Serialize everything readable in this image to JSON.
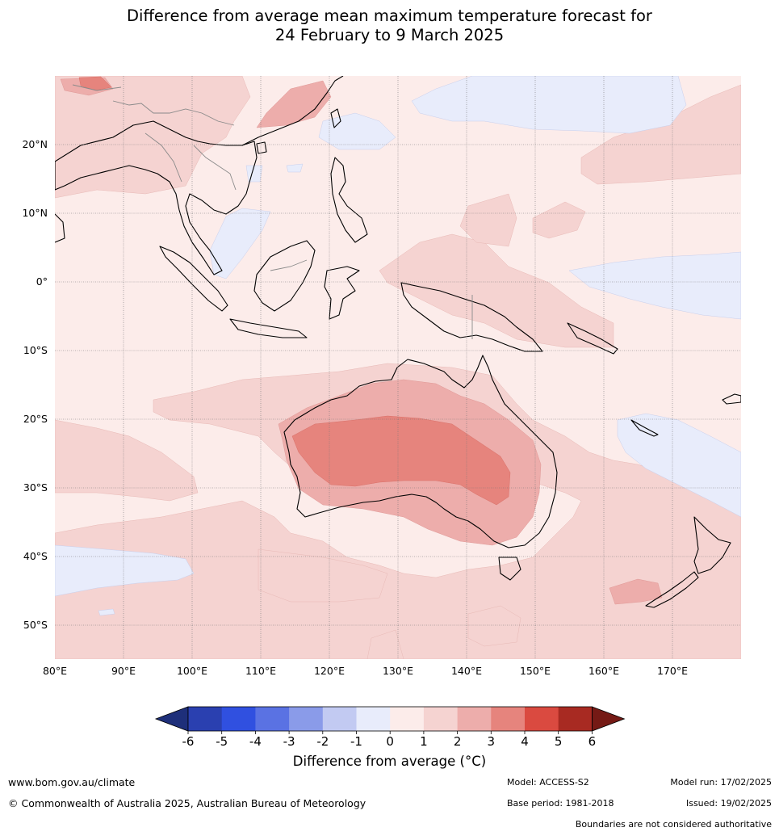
{
  "title": {
    "line1": "Difference from average mean maximum temperature forecast for",
    "line2": "24 February to 9 March 2025"
  },
  "map": {
    "lon_labels": [
      "80°E",
      "90°E",
      "100°E",
      "110°E",
      "120°E",
      "130°E",
      "140°E",
      "150°E",
      "160°E",
      "170°E"
    ],
    "lat_labels": [
      "20°N",
      "10°N",
      "0°",
      "10°S",
      "20°S",
      "30°S",
      "40°S",
      "50°S"
    ],
    "background_anomaly_range": "0 to 1",
    "hotspot": "central and western Australia, anomaly 3 to 4 °C"
  },
  "colorbar": {
    "ticks": [
      "-6",
      "-5",
      "-4",
      "-3",
      "-2",
      "-1",
      "0",
      "1",
      "2",
      "3",
      "4",
      "5",
      "6"
    ],
    "colors": [
      "#1e2f7a",
      "#2a40b0",
      "#3050e0",
      "#5a72e3",
      "#8a9be9",
      "#c2caf2",
      "#e8ecfb",
      "#fcecea",
      "#f5d3d1",
      "#edadab",
      "#e6847d",
      "#da4a40",
      "#a82a22",
      "#751a15"
    ],
    "label": "Difference from average (°C)"
  },
  "footer": {
    "website": "www.bom.gov.au/climate",
    "copyright": "© Commonwealth of Australia 2025, Australian Bureau of Meteorology",
    "model": "Model: ACCESS-S2",
    "model_run": "Model run: 17/02/2025",
    "base_period": "Base period: 1981-2018",
    "issued": "Issued: 19/02/2025",
    "disclaimer": "Boundaries are not considered authoritative"
  }
}
